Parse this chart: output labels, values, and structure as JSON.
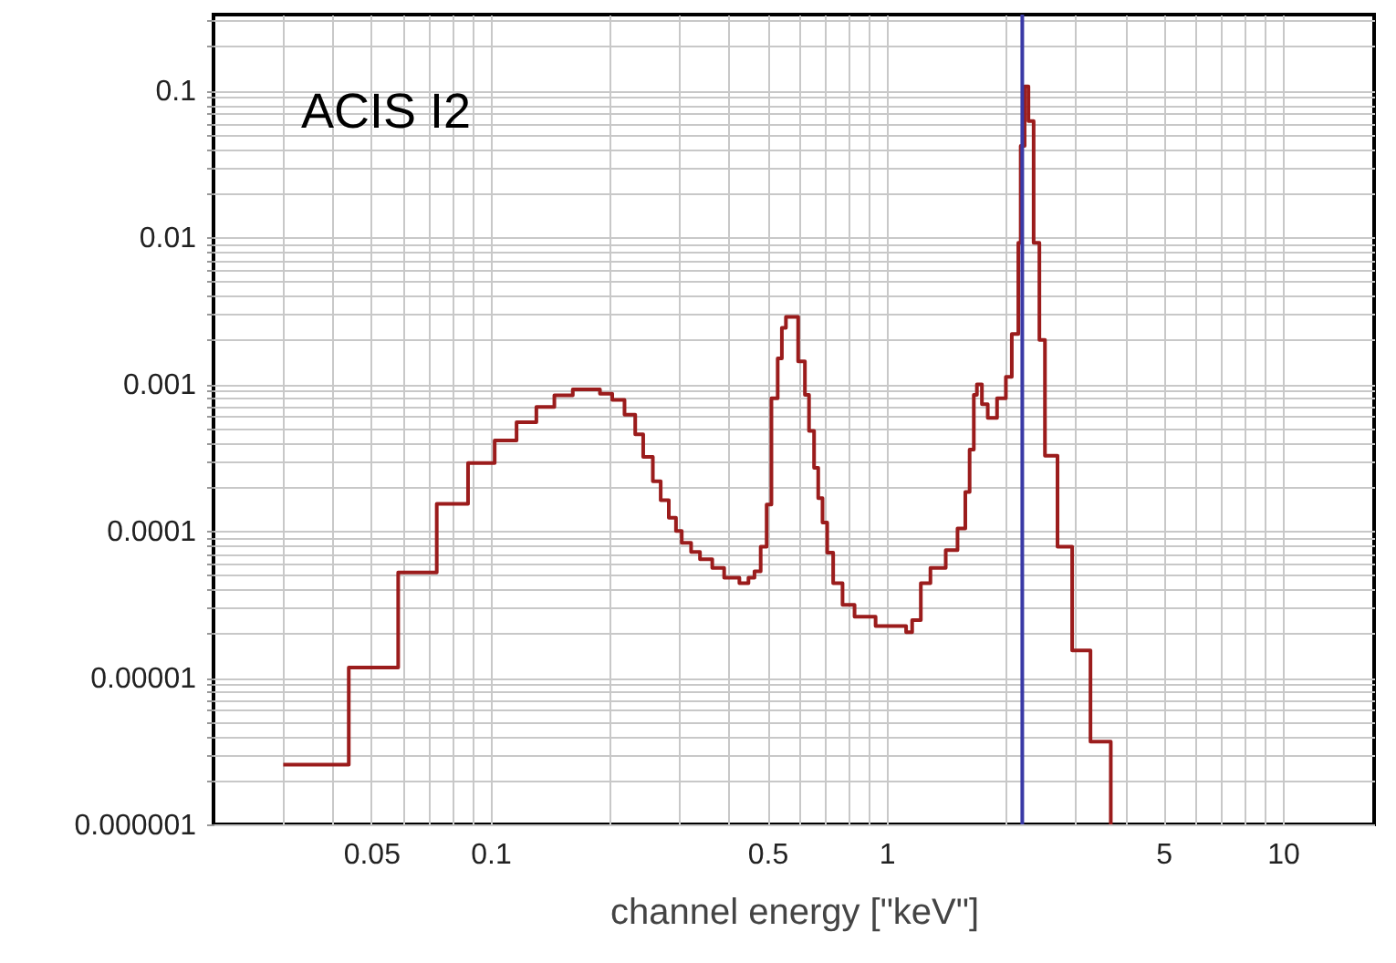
{
  "chart_data": {
    "type": "step",
    "xlabel": "channel energy [\"keV\"]",
    "log": "xy",
    "grid": true,
    "annotations": [
      "ACIS I2"
    ],
    "xlim": [
      0.02,
      17
    ],
    "ylim": [
      1e-06,
      0.33
    ],
    "xticks": [
      {
        "value": 0.03,
        "label": null
      },
      {
        "value": 0.04,
        "label": null
      },
      0.05,
      {
        "value": 0.06,
        "label": null
      },
      {
        "value": 0.07,
        "label": null
      },
      {
        "value": 0.08,
        "label": null
      },
      {
        "value": 0.09,
        "label": null
      },
      0.1,
      {
        "value": 0.2,
        "label": null
      },
      {
        "value": 0.3,
        "label": null
      },
      {
        "value": 0.4,
        "label": null
      },
      0.5,
      {
        "value": 0.6,
        "label": null
      },
      {
        "value": 0.7,
        "label": null
      },
      {
        "value": 0.8,
        "label": null
      },
      {
        "value": 0.9,
        "label": null
      },
      1,
      {
        "value": 2,
        "label": null
      },
      {
        "value": 3,
        "label": null
      },
      {
        "value": 4,
        "label": null
      },
      5,
      {
        "value": 6,
        "label": null
      },
      {
        "value": 7,
        "label": null
      },
      {
        "value": 8,
        "label": null
      },
      {
        "value": 9,
        "label": null
      },
      10
    ],
    "yticks": [
      {
        "value": 1e-06,
        "label": "0.000001"
      },
      {
        "value": 2e-06,
        "label": null
      },
      {
        "value": 3e-06,
        "label": null
      },
      {
        "value": 4e-06,
        "label": null
      },
      {
        "value": 5e-06,
        "label": null
      },
      {
        "value": 6e-06,
        "label": null
      },
      {
        "value": 7e-06,
        "label": null
      },
      {
        "value": 8e-06,
        "label": null
      },
      {
        "value": 9e-06,
        "label": null
      },
      {
        "value": 1e-05,
        "label": "0.00001"
      },
      {
        "value": 2e-05,
        "label": null
      },
      {
        "value": 3e-05,
        "label": null
      },
      {
        "value": 4e-05,
        "label": null
      },
      {
        "value": 5e-05,
        "label": null
      },
      {
        "value": 6e-05,
        "label": null
      },
      {
        "value": 7e-05,
        "label": null
      },
      {
        "value": 8e-05,
        "label": null
      },
      {
        "value": 9e-05,
        "label": null
      },
      0.0001,
      {
        "value": 0.0002,
        "label": null
      },
      {
        "value": 0.0003,
        "label": null
      },
      {
        "value": 0.0004,
        "label": null
      },
      {
        "value": 0.0005,
        "label": null
      },
      {
        "value": 0.0006,
        "label": null
      },
      {
        "value": 0.0007,
        "label": null
      },
      {
        "value": 0.0008,
        "label": null
      },
      {
        "value": 0.0009,
        "label": null
      },
      0.001,
      {
        "value": 0.002,
        "label": null
      },
      {
        "value": 0.003,
        "label": null
      },
      {
        "value": 0.004,
        "label": null
      },
      {
        "value": 0.005,
        "label": null
      },
      {
        "value": 0.006,
        "label": null
      },
      {
        "value": 0.007,
        "label": null
      },
      {
        "value": 0.008,
        "label": null
      },
      {
        "value": 0.009,
        "label": null
      },
      0.01,
      {
        "value": 0.02,
        "label": null
      },
      {
        "value": 0.03,
        "label": null
      },
      {
        "value": 0.04,
        "label": null
      },
      {
        "value": 0.05,
        "label": null
      },
      {
        "value": 0.06,
        "label": null
      },
      {
        "value": 0.07,
        "label": null
      },
      {
        "value": 0.08,
        "label": null
      },
      {
        "value": 0.09,
        "label": null
      },
      0.1,
      {
        "value": 0.2,
        "label": null
      },
      {
        "value": 0.3,
        "label": null
      }
    ],
    "ref_lines": [
      {
        "axis": "x",
        "value": 2.2,
        "color": "#3a3aa6"
      }
    ],
    "series": [
      {
        "color": "#9b1c1c",
        "x": [
          0.03,
          0.0439,
          0.0585,
          0.0732,
          0.0878,
          0.1025,
          0.1164,
          0.1306,
          0.145,
          0.1614,
          0.189,
          0.203,
          0.218,
          0.232,
          0.243,
          0.257,
          0.269,
          0.282,
          0.294,
          0.304,
          0.321,
          0.338,
          0.363,
          0.389,
          0.425,
          0.448,
          0.464,
          0.481,
          0.498,
          0.512,
          0.531,
          0.544,
          0.557,
          0.598,
          0.622,
          0.637,
          0.656,
          0.672,
          0.689,
          0.708,
          0.733,
          0.774,
          0.83,
          0.938,
          1.12,
          1.16,
          1.22,
          1.29,
          1.41,
          1.51,
          1.58,
          1.62,
          1.66,
          1.69,
          1.74,
          1.8,
          1.9,
          2.0,
          2.07,
          2.15,
          2.18,
          2.23,
          2.28,
          2.35,
          2.43,
          2.51,
          2.7,
          2.94,
          3.27,
          3.68
        ],
        "values": [
          2.55e-06,
          1.17e-05,
          5.2e-05,
          0.000153,
          0.00029,
          0.000413,
          0.00055,
          0.0007,
          0.00084,
          0.00092,
          0.00086,
          0.00078,
          0.00062,
          0.000455,
          0.000319,
          0.000218,
          0.000162,
          0.000123,
          0.0001,
          8.3e-05,
          7.2e-05,
          6.4e-05,
          5.6e-05,
          4.8e-05,
          4.4e-05,
          4.8e-05,
          5.3e-05,
          7.8e-05,
          0.000151,
          0.0008,
          0.0015,
          0.00242,
          0.00287,
          0.00143,
          0.000845,
          0.00048,
          0.000269,
          0.000167,
          0.000114,
          7.1e-05,
          4.4e-05,
          3.13e-05,
          2.6e-05,
          2.25e-05,
          2.04e-05,
          2.47e-05,
          4.4e-05,
          5.6e-05,
          7.4e-05,
          0.000104,
          0.000184,
          0.000358,
          0.000845,
          0.000995,
          0.00073,
          0.00059,
          0.0008,
          0.00112,
          0.0022,
          0.0092,
          0.042,
          0.107,
          0.062,
          0.0092,
          0.002,
          0.000325,
          7.8e-05,
          1.53e-05,
          3.66e-06,
          1e-06
        ]
      }
    ]
  }
}
